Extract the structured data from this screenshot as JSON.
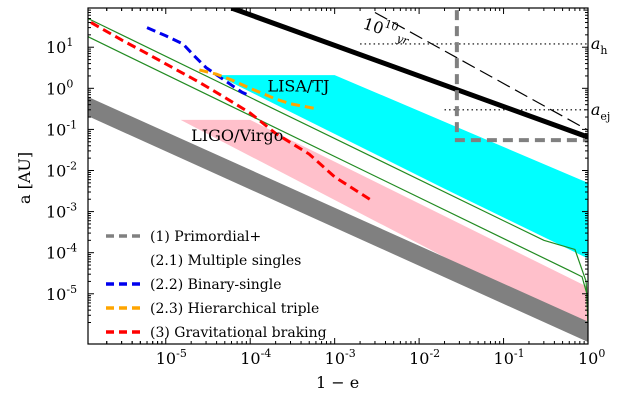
{
  "chart_data": {
    "type": "line",
    "xscale": "log",
    "yscale": "log",
    "xlim": [
      1.2e-06,
      1
    ],
    "ylim": [
      6e-07,
      90
    ],
    "xlabel": "1 − e",
    "ylabel": "a [AU]",
    "xticks": [
      {
        "v": 1e-05,
        "label": "10",
        "exp": "-5"
      },
      {
        "v": 0.0001,
        "label": "10",
        "exp": "-4"
      },
      {
        "v": 0.001,
        "label": "10",
        "exp": "-3"
      },
      {
        "v": 0.01,
        "label": "10",
        "exp": "-2"
      },
      {
        "v": 0.1,
        "label": "10",
        "exp": "-1"
      },
      {
        "v": 1,
        "label": "10",
        "exp": "0"
      }
    ],
    "yticks": [
      {
        "v": 1e-05,
        "label": "10",
        "exp": "-5"
      },
      {
        "v": 0.0001,
        "label": "10",
        "exp": "-4"
      },
      {
        "v": 0.001,
        "label": "10",
        "exp": "-3"
      },
      {
        "v": 0.01,
        "label": "10",
        "exp": "-2"
      },
      {
        "v": 0.1,
        "label": "10",
        "exp": "-1"
      },
      {
        "v": 1,
        "label": "10",
        "exp": "0"
      },
      {
        "v": 10,
        "label": "10",
        "exp": "1"
      }
    ],
    "bands": [
      {
        "name": "LISA/TJ",
        "color": "#00ffff",
        "polygon": [
          [
            4e-05,
            2.1
          ],
          [
            0.001,
            2.1
          ],
          [
            1,
            0.005
          ],
          [
            1,
            7.2e-05
          ],
          [
            0.02,
            0.0036
          ],
          [
            4e-05,
            2.1
          ]
        ],
        "label_at": [
          0.00016,
          1.1
        ]
      },
      {
        "name": "LIGO/Virgo",
        "color": "#ffc0cb",
        "polygon": [
          [
            1.5e-05,
            0.17
          ],
          [
            0.0001,
            0.17
          ],
          [
            1,
            1.45e-05
          ],
          [
            1,
            1.2e-06
          ],
          [
            1.5e-05,
            0.17
          ]
        ],
        "label_at": [
          2e-05,
          0.07
        ]
      },
      {
        "name": "",
        "color": "#808080",
        "polygon": [
          [
            1.2e-06,
            0.62
          ],
          [
            1.2e-06,
            0.21
          ],
          [
            1,
            6.7e-07
          ],
          [
            1,
            2.1e-06
          ]
        ]
      }
    ],
    "reference_lines": [
      {
        "kind": "thick",
        "color": "#000000",
        "points": [
          [
            6e-05,
            90
          ],
          [
            1,
            0.065
          ]
        ]
      },
      {
        "kind": "dashed",
        "color": "#000000",
        "points": [
          [
            0.003,
            70
          ],
          [
            1,
            0.096
          ]
        ]
      },
      {
        "kind": "green",
        "color": "#228b22",
        "points": [
          [
            1.2e-06,
            50
          ],
          [
            0.3,
            0.0002
          ],
          [
            0.7,
            0.00012
          ],
          [
            0.95,
            2e-05
          ],
          [
            1,
            2e-06
          ]
        ]
      },
      {
        "kind": "green",
        "color": "#228b22",
        "points": [
          [
            1.2e-06,
            18
          ],
          [
            0.6,
            3.7e-05
          ],
          [
            0.85,
            2.6e-05
          ],
          [
            0.97,
            1e-05
          ],
          [
            1,
            2e-06
          ]
        ]
      },
      {
        "kind": "dotted",
        "color": "#000000",
        "points": [
          [
            0.002,
            12
          ],
          [
            1,
            12
          ]
        ]
      },
      {
        "kind": "dotted",
        "color": "#000000",
        "points": [
          [
            0.02,
            0.3
          ],
          [
            1,
            0.3
          ]
        ]
      },
      {
        "kind": "grey-dashed",
        "color": "#808080",
        "points": [
          [
            0.028,
            80
          ],
          [
            0.028,
            0.055
          ],
          [
            1,
            0.055
          ]
        ]
      }
    ],
    "series": [
      {
        "name": "(2.2) Binary-single",
        "color": "#0000ee",
        "x": [
          6e-06,
          1e-05,
          1.6e-05,
          2.2e-05,
          3e-05,
          4.5e-05,
          6e-05,
          8e-05,
          0.0001
        ],
        "y": [
          30,
          19,
          12,
          6,
          3.2,
          1.8,
          1.2,
          0.8,
          0.65
        ]
      },
      {
        "name": "(2.3) Hierarchical triple",
        "color": "#ffa500",
        "x": [
          2.5e-05,
          4e-05,
          6e-05,
          0.0001,
          0.0002,
          0.0003,
          0.0006
        ],
        "y": [
          2.8,
          2.2,
          1.6,
          1.0,
          0.55,
          0.42,
          0.32
        ]
      },
      {
        "name": "(3) Gravitational braking",
        "color": "#ff0000",
        "x": [
          1.3e-06,
          3e-06,
          6e-06,
          1.2e-05,
          2.5e-05,
          5e-05,
          0.0001,
          0.0002,
          0.0005,
          0.001,
          0.0026
        ],
        "y": [
          40,
          15,
          7,
          3.2,
          1.4,
          0.6,
          0.25,
          0.08,
          0.025,
          0.007,
          0.002
        ]
      },
      {
        "name": "(1) Primordial+ (2.1) Multiple singles",
        "color": "#808080",
        "x": [],
        "y": []
      }
    ],
    "annotations": [
      {
        "text": "10",
        "sup": "10",
        "sub": "yr",
        "at": [
          0.0022,
          38
        ]
      },
      {
        "text": "a",
        "sub": "h",
        "at": [
          1.08,
          12
        ]
      },
      {
        "text": "a",
        "sub": "ej",
        "at": [
          1.08,
          0.3
        ]
      }
    ],
    "legend": {
      "placement": "lower-left",
      "entries": [
        {
          "label": "(1) Primordial+",
          "color": "#808080"
        },
        {
          "label": "(2.1) Multiple singles",
          "color": ""
        },
        {
          "label": "(2.2) Binary-single",
          "color": "#0000ee"
        },
        {
          "label": "(2.3) Hierarchical triple",
          "color": "#ffa500"
        },
        {
          "label": "(3) Gravitational braking",
          "color": "#ff0000"
        }
      ]
    }
  }
}
